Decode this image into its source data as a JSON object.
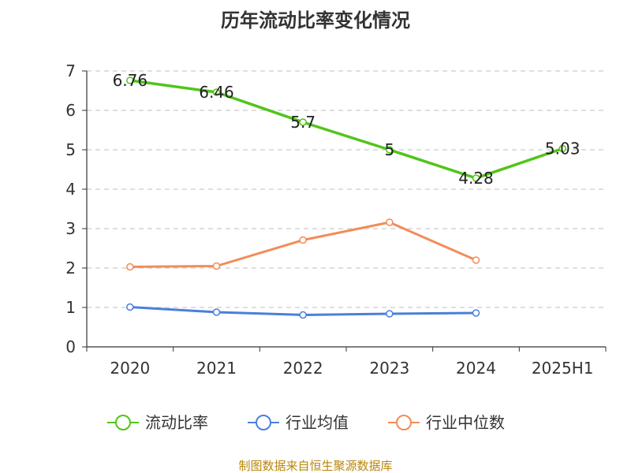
{
  "chart_data": {
    "type": "line",
    "title": "历年流动比率变化情况",
    "categories": [
      "2020",
      "2021",
      "2022",
      "2023",
      "2024",
      "2025H1"
    ],
    "ylim": [
      0,
      7
    ],
    "yticks": [
      "0",
      "1",
      "2",
      "3",
      "4",
      "5",
      "6",
      "7"
    ],
    "grid": true,
    "legend_position": "bottom",
    "series": [
      {
        "name": "流动比率",
        "color": "#52c41a",
        "values": [
          6.76,
          6.46,
          5.7,
          5,
          4.28,
          5.03
        ],
        "labels": [
          "6.76",
          "6.46",
          "5.7",
          "5",
          "4.28",
          "5.03"
        ]
      },
      {
        "name": "行业均值",
        "color": "#4a7fdc",
        "values": [
          1.01,
          0.88,
          0.81,
          0.84,
          0.86,
          null
        ]
      },
      {
        "name": "行业中位数",
        "color": "#f28c58",
        "values": [
          2.03,
          2.05,
          2.71,
          3.16,
          2.2,
          null
        ]
      }
    ]
  },
  "source_text": "制图数据来自恒生聚源数据库"
}
